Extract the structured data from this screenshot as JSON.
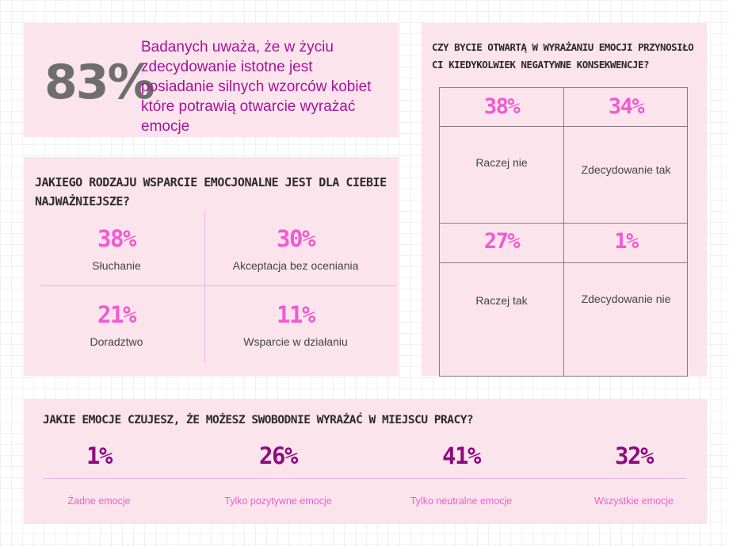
{
  "stat_panel": {
    "percent": "83%",
    "text": "Badanych uważa, że w życiu zdecydowanie istotne jest posiadanie silnych wzorców kobiet które potrawią otwarcie wyrażać emocje"
  },
  "support_panel": {
    "question": "Jakiego rodzaju wsparcie emocjonalne jest dla ciebie najważniejsze?",
    "items": [
      {
        "percent": "38%",
        "label": "Słuchanie"
      },
      {
        "percent": "30%",
        "label": "Akceptacja bez oceniania"
      },
      {
        "percent": "21%",
        "label": "Doradztwo"
      },
      {
        "percent": "11%",
        "label": "Wsparcie w działaniu"
      }
    ]
  },
  "consequences_panel": {
    "question": "Czy bycie otwartą w wyrażaniu emocji przynosiło ci kiedykolwiek negatywne konsekwencje?",
    "cells": [
      {
        "percent": "38%",
        "label": "Raczej nie"
      },
      {
        "percent": "34%",
        "label": "Zdecydowanie tak"
      },
      {
        "percent": "27%",
        "label": "Raczej tak"
      },
      {
        "percent": "1%",
        "label": "Zdecydowanie nie"
      }
    ]
  },
  "work_panel": {
    "question": "Jakie emocje czujesz, że możesz swobodnie wyrażać w miejscu pracy?",
    "items": [
      {
        "percent": "1%",
        "label": "Żadne emocje"
      },
      {
        "percent": "26%",
        "label": "Tylko pozytywne emocje"
      },
      {
        "percent": "41%",
        "label": "Tylko neutralne emocje"
      },
      {
        "percent": "32%",
        "label": "Wszystkie emocje"
      }
    ]
  },
  "colors": {
    "panel_bg": "#fce4ec",
    "accent_pink": "#f05bd2",
    "accent_purple": "#8c0c80",
    "stat_text": "#a5139b",
    "stat_number": "#6e6e6e"
  }
}
